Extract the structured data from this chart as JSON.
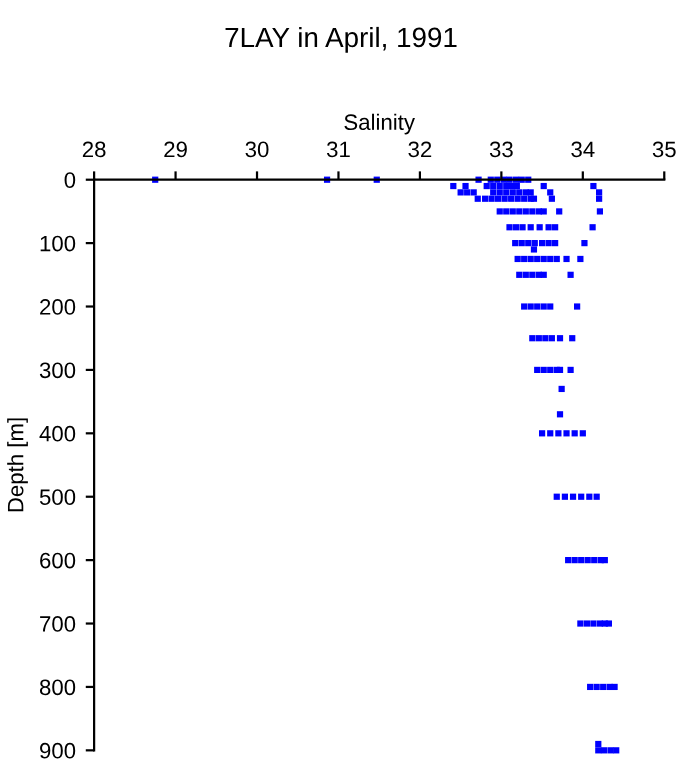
{
  "chart_data": {
    "type": "scatter",
    "title": "7LAY in April, 1991",
    "xlabel": "Salinity",
    "ylabel": "Depth [m]",
    "xlim": [
      28,
      35
    ],
    "xticks": [
      28,
      29,
      30,
      31,
      32,
      33,
      34,
      35
    ],
    "ylim": [
      900,
      0
    ],
    "yticks": [
      0,
      100,
      200,
      300,
      400,
      500,
      600,
      700,
      800,
      900
    ],
    "grid": false,
    "legend": false,
    "marker": "square",
    "series": [
      {
        "color": "#0000ff",
        "x": [
          28.75,
          30.86,
          31.47,
          32.72,
          32.87,
          32.95,
          33.03,
          33.1,
          33.18,
          33.25,
          33.33,
          32.41,
          32.56,
          32.82,
          32.9,
          32.98,
          33.06,
          33.13,
          33.19,
          33.52,
          34.13,
          32.5,
          32.58,
          32.66,
          32.9,
          32.98,
          33.06,
          33.14,
          33.22,
          33.3,
          33.36,
          33.6,
          34.2,
          32.71,
          32.8,
          32.88,
          32.96,
          33.04,
          33.12,
          33.2,
          33.28,
          33.36,
          33.4,
          33.62,
          34.2,
          32.98,
          33.06,
          33.14,
          33.22,
          33.3,
          33.38,
          33.46,
          33.52,
          33.71,
          34.21,
          33.1,
          33.18,
          33.26,
          33.36,
          33.47,
          33.58,
          33.66,
          34.12,
          33.17,
          33.25,
          33.33,
          33.41,
          33.5,
          33.58,
          33.66,
          34.02,
          33.4,
          33.2,
          33.28,
          33.36,
          33.44,
          33.52,
          33.6,
          33.68,
          33.8,
          33.97,
          33.22,
          33.3,
          33.38,
          33.46,
          33.52,
          33.85,
          33.28,
          33.36,
          33.44,
          33.52,
          33.6,
          33.93,
          33.38,
          33.46,
          33.54,
          33.62,
          33.72,
          33.87,
          33.44,
          33.52,
          33.6,
          33.68,
          33.72,
          33.85,
          33.74,
          33.72,
          33.5,
          33.6,
          33.7,
          33.8,
          33.9,
          34.0,
          33.68,
          33.78,
          33.88,
          33.98,
          34.08,
          34.17,
          33.82,
          33.9,
          33.98,
          34.06,
          34.14,
          34.22,
          34.27,
          33.97,
          34.05,
          34.13,
          34.21,
          34.27,
          34.32,
          34.09,
          34.17,
          34.25,
          34.33,
          34.39,
          34.19,
          34.19,
          34.26,
          34.34,
          34.41
        ],
        "values": [
          0,
          0,
          0,
          0,
          0,
          0,
          0,
          0,
          0,
          0,
          0,
          10,
          10,
          10,
          10,
          10,
          10,
          10,
          10,
          10,
          10,
          20,
          20,
          20,
          20,
          20,
          20,
          20,
          20,
          20,
          20,
          20,
          20,
          30,
          30,
          30,
          30,
          30,
          30,
          30,
          30,
          30,
          30,
          30,
          30,
          50,
          50,
          50,
          50,
          50,
          50,
          50,
          50,
          50,
          50,
          75,
          75,
          75,
          75,
          75,
          75,
          75,
          75,
          100,
          100,
          100,
          100,
          100,
          100,
          100,
          100,
          110,
          125,
          125,
          125,
          125,
          125,
          125,
          125,
          125,
          125,
          150,
          150,
          150,
          150,
          150,
          150,
          200,
          200,
          200,
          200,
          200,
          200,
          250,
          250,
          250,
          250,
          250,
          250,
          300,
          300,
          300,
          300,
          300,
          300,
          330,
          370,
          400,
          400,
          400,
          400,
          400,
          400,
          500,
          500,
          500,
          500,
          500,
          500,
          600,
          600,
          600,
          600,
          600,
          600,
          600,
          700,
          700,
          700,
          700,
          700,
          700,
          800,
          800,
          800,
          800,
          800,
          890,
          900,
          900,
          900,
          900
        ]
      }
    ]
  }
}
